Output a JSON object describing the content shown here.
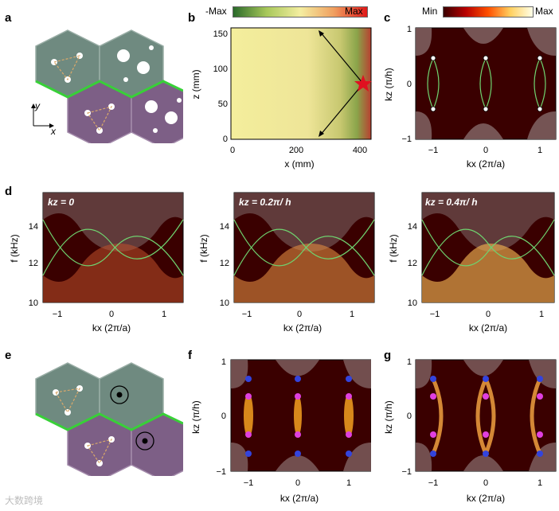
{
  "panel_labels": {
    "a": "a",
    "b": "b",
    "c": "c",
    "d": "d",
    "e": "e",
    "f": "f",
    "g": "g"
  },
  "panel_a": {
    "axis_y": "y",
    "axis_x": "x"
  },
  "panel_b": {
    "colorbar_min": "-Max",
    "colorbar_max": "Max",
    "xlabel": "x (mm)",
    "ylabel": "z (mm)",
    "xticks": [
      "0",
      "200",
      "400"
    ],
    "yticks": [
      "0",
      "50",
      "100",
      "150"
    ]
  },
  "panel_c": {
    "colorbar_min": "Min",
    "colorbar_max": "Max",
    "xlabel": "kx (2π/a)",
    "ylabel": "kz (π/h)",
    "xticks": [
      "−1",
      "0",
      "1"
    ],
    "yticks": [
      "−1",
      "0",
      "1"
    ]
  },
  "panel_d": {
    "ylabel": "f (kHz)",
    "xlabel": "kx (2π/a)",
    "yticks": [
      "10",
      "12",
      "14"
    ],
    "xticks": [
      "−1",
      "0",
      "1"
    ],
    "subpanels": [
      {
        "title": "kz = 0"
      },
      {
        "title": "kz = 0.2π/ h"
      },
      {
        "title": "kz = 0.4π/ h"
      }
    ]
  },
  "panel_f": {
    "xlabel": "kx (2π/a)",
    "ylabel": "kz (π/h)",
    "xticks": [
      "−1",
      "0",
      "1"
    ],
    "yticks": [
      "−1",
      "0",
      "1"
    ]
  },
  "panel_g": {
    "xlabel": "kx (2π/a)",
    "ylabel": "kz (π/h)",
    "xticks": [
      "−1",
      "0",
      "1"
    ],
    "yticks": [
      "−1",
      "0",
      "1"
    ]
  },
  "watermark": "大数跨境",
  "colors": {
    "hex_top": "#6f8a80",
    "hex_bottom": "#7d5f86",
    "interface": "#38d038",
    "map_dark": "#3a0000",
    "band_line": "#6fd36f"
  }
}
